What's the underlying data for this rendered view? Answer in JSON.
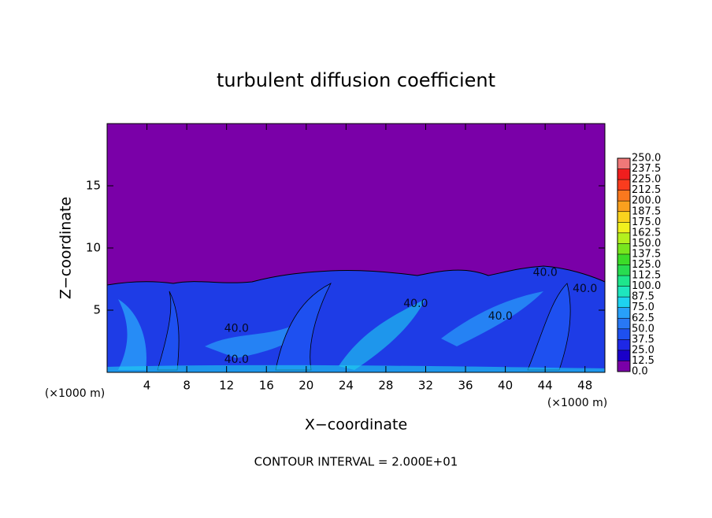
{
  "chart_data": {
    "type": "contour",
    "title": "turbulent diffusion coefficient",
    "xlabel": "X−coordinate",
    "ylabel": "Z−coordinate",
    "x_unit": "(×1000 m)",
    "xlim": [
      0,
      50
    ],
    "ylim": [
      0,
      20
    ],
    "xticks": [
      4,
      8,
      12,
      16,
      20,
      24,
      28,
      32,
      36,
      40,
      44,
      48
    ],
    "yticks": [
      5,
      10,
      15
    ],
    "colorbar": {
      "ticks": [
        {
          "value": 0,
          "label": "0.0"
        },
        {
          "value": 12.5,
          "label": "12.5"
        },
        {
          "value": 25,
          "label": "25.0"
        },
        {
          "value": 37.5,
          "label": "37.5"
        },
        {
          "value": 50,
          "label": "50.0"
        },
        {
          "value": 62.5,
          "label": "62.5"
        },
        {
          "value": 75,
          "label": "75.0"
        },
        {
          "value": 87.5,
          "label": "87.5"
        },
        {
          "value": 100,
          "label": "100.0"
        },
        {
          "value": 112.5,
          "label": "112.5"
        },
        {
          "value": 125,
          "label": "125.0"
        },
        {
          "value": 137.5,
          "label": "137.5"
        },
        {
          "value": 150,
          "label": "150.0"
        },
        {
          "value": 162.5,
          "label": "162.5"
        },
        {
          "value": 175,
          "label": "175.0"
        },
        {
          "value": 187.5,
          "label": "187.5"
        },
        {
          "value": 200,
          "label": "200.0"
        },
        {
          "value": 212.5,
          "label": "212.5"
        },
        {
          "value": 225,
          "label": "225.0"
        },
        {
          "value": 237.5,
          "label": "237.5"
        },
        {
          "value": 250,
          "label": "250.0"
        }
      ],
      "colors": [
        "#7a00a8",
        "#1a00c8",
        "#1e28e6",
        "#1e50f0",
        "#2878f5",
        "#28a0fa",
        "#1ed2f0",
        "#1ee6be",
        "#1ee68c",
        "#28dc50",
        "#3cdc28",
        "#78e61e",
        "#b4f01e",
        "#f0f01e",
        "#fad21e",
        "#faa01e",
        "#fa781e",
        "#fa3c1e",
        "#f01e1e",
        "#f07878"
      ]
    },
    "annotations": [
      {
        "text": "40.0",
        "x": 13,
        "y": 3.5
      },
      {
        "text": "40.0",
        "x": 13,
        "y": 1
      },
      {
        "text": "40.0",
        "x": 31,
        "y": 5.5
      },
      {
        "text": "40.0",
        "x": 39.5,
        "y": 4.5
      },
      {
        "text": "40.0",
        "x": 44,
        "y": 8
      },
      {
        "text": "40.0",
        "x": 48,
        "y": 6.7
      }
    ],
    "footer": "CONTOUR INTERVAL = 2.000E+01"
  }
}
